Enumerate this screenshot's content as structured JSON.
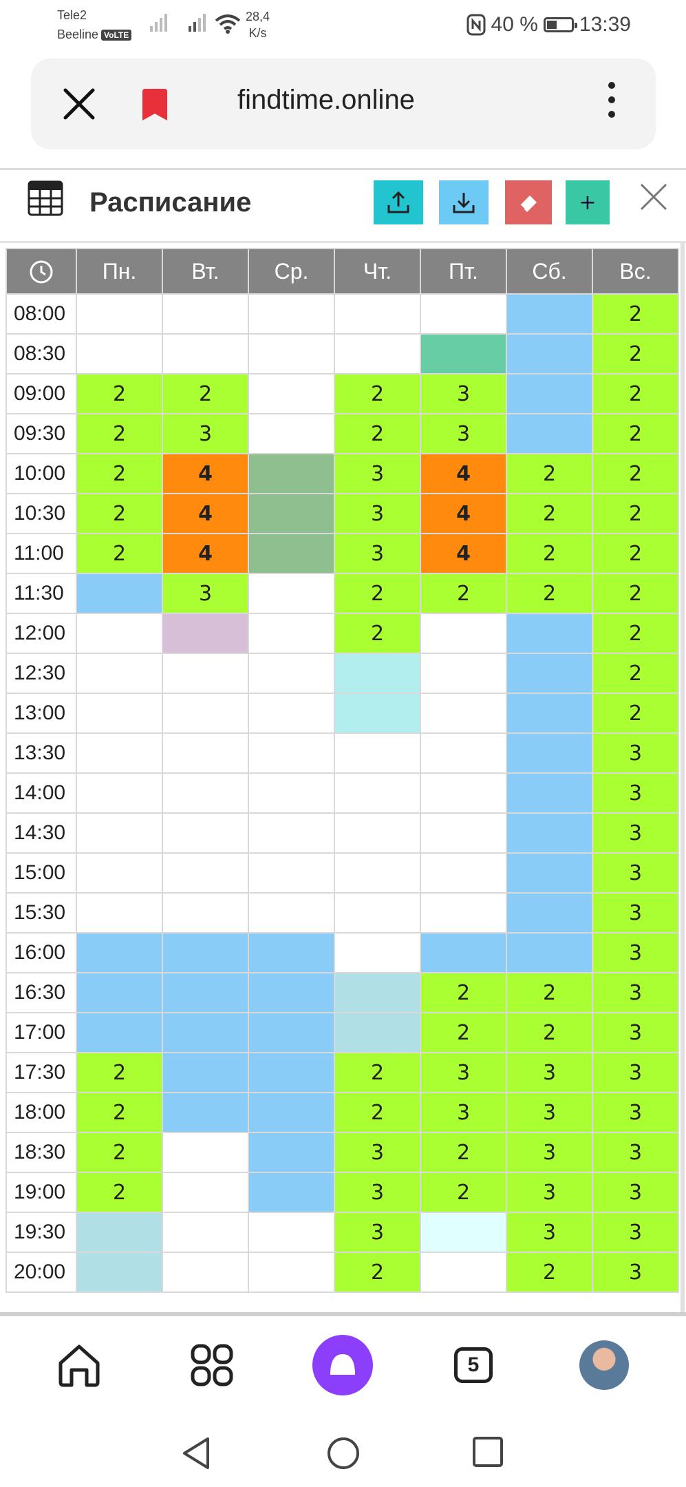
{
  "status_bar": {
    "operator1": "Tele2",
    "operator2": "Beeline",
    "volte": "VoLTE",
    "net_speed_value": "28,4",
    "net_speed_unit": "K/s",
    "battery": "40 %",
    "time": "13:39"
  },
  "browser": {
    "url": "findtime.online"
  },
  "schedule": {
    "title": "Расписание",
    "add_label": "+",
    "days": [
      "Пн.",
      "Вт.",
      "Ср.",
      "Чт.",
      "Пт.",
      "Сб.",
      "Вс."
    ],
    "rows": [
      {
        "time": "08:00",
        "cells": [
          {
            "v": "",
            "c": "w"
          },
          {
            "v": "",
            "c": "w"
          },
          {
            "v": "",
            "c": "w"
          },
          {
            "v": "",
            "c": "w"
          },
          {
            "v": "",
            "c": "w"
          },
          {
            "v": "",
            "c": "b"
          },
          {
            "v": "2",
            "c": "g"
          }
        ]
      },
      {
        "time": "08:30",
        "cells": [
          {
            "v": "",
            "c": "w"
          },
          {
            "v": "",
            "c": "w"
          },
          {
            "v": "",
            "c": "w"
          },
          {
            "v": "",
            "c": "w"
          },
          {
            "v": "",
            "c": "t"
          },
          {
            "v": "",
            "c": "b"
          },
          {
            "v": "2",
            "c": "g"
          }
        ]
      },
      {
        "time": "09:00",
        "cells": [
          {
            "v": "2",
            "c": "g"
          },
          {
            "v": "2",
            "c": "g"
          },
          {
            "v": "",
            "c": "w"
          },
          {
            "v": "2",
            "c": "g"
          },
          {
            "v": "3",
            "c": "g"
          },
          {
            "v": "",
            "c": "b"
          },
          {
            "v": "2",
            "c": "g"
          }
        ]
      },
      {
        "time": "09:30",
        "cells": [
          {
            "v": "2",
            "c": "g"
          },
          {
            "v": "3",
            "c": "g"
          },
          {
            "v": "",
            "c": "w"
          },
          {
            "v": "2",
            "c": "g"
          },
          {
            "v": "3",
            "c": "g"
          },
          {
            "v": "",
            "c": "b"
          },
          {
            "v": "2",
            "c": "g"
          }
        ]
      },
      {
        "time": "10:00",
        "cells": [
          {
            "v": "2",
            "c": "g"
          },
          {
            "v": "4",
            "c": "o"
          },
          {
            "v": "",
            "c": "s"
          },
          {
            "v": "3",
            "c": "g"
          },
          {
            "v": "4",
            "c": "o"
          },
          {
            "v": "2",
            "c": "g"
          },
          {
            "v": "2",
            "c": "g"
          }
        ]
      },
      {
        "time": "10:30",
        "cells": [
          {
            "v": "2",
            "c": "g"
          },
          {
            "v": "4",
            "c": "o"
          },
          {
            "v": "",
            "c": "s"
          },
          {
            "v": "3",
            "c": "g"
          },
          {
            "v": "4",
            "c": "o"
          },
          {
            "v": "2",
            "c": "g"
          },
          {
            "v": "2",
            "c": "g"
          }
        ]
      },
      {
        "time": "11:00",
        "cells": [
          {
            "v": "2",
            "c": "g"
          },
          {
            "v": "4",
            "c": "o"
          },
          {
            "v": "",
            "c": "s"
          },
          {
            "v": "3",
            "c": "g"
          },
          {
            "v": "4",
            "c": "o"
          },
          {
            "v": "2",
            "c": "g"
          },
          {
            "v": "2",
            "c": "g"
          }
        ]
      },
      {
        "time": "11:30",
        "cells": [
          {
            "v": "",
            "c": "b"
          },
          {
            "v": "3",
            "c": "g"
          },
          {
            "v": "",
            "c": "w"
          },
          {
            "v": "2",
            "c": "g"
          },
          {
            "v": "2",
            "c": "g"
          },
          {
            "v": "2",
            "c": "g"
          },
          {
            "v": "2",
            "c": "g"
          }
        ]
      },
      {
        "time": "12:00",
        "cells": [
          {
            "v": "",
            "c": "w"
          },
          {
            "v": "",
            "c": "p"
          },
          {
            "v": "",
            "c": "w"
          },
          {
            "v": "2",
            "c": "g"
          },
          {
            "v": "",
            "c": "w"
          },
          {
            "v": "",
            "c": "b"
          },
          {
            "v": "2",
            "c": "g"
          }
        ]
      },
      {
        "time": "12:30",
        "cells": [
          {
            "v": "",
            "c": "w"
          },
          {
            "v": "",
            "c": "w"
          },
          {
            "v": "",
            "c": "w"
          },
          {
            "v": "",
            "c": "c"
          },
          {
            "v": "",
            "c": "w"
          },
          {
            "v": "",
            "c": "b"
          },
          {
            "v": "2",
            "c": "g"
          }
        ]
      },
      {
        "time": "13:00",
        "cells": [
          {
            "v": "",
            "c": "w"
          },
          {
            "v": "",
            "c": "w"
          },
          {
            "v": "",
            "c": "w"
          },
          {
            "v": "",
            "c": "c"
          },
          {
            "v": "",
            "c": "w"
          },
          {
            "v": "",
            "c": "b"
          },
          {
            "v": "2",
            "c": "g"
          }
        ]
      },
      {
        "time": "13:30",
        "cells": [
          {
            "v": "",
            "c": "w"
          },
          {
            "v": "",
            "c": "w"
          },
          {
            "v": "",
            "c": "w"
          },
          {
            "v": "",
            "c": "w"
          },
          {
            "v": "",
            "c": "w"
          },
          {
            "v": "",
            "c": "b"
          },
          {
            "v": "3",
            "c": "g"
          }
        ]
      },
      {
        "time": "14:00",
        "cells": [
          {
            "v": "",
            "c": "w"
          },
          {
            "v": "",
            "c": "w"
          },
          {
            "v": "",
            "c": "w"
          },
          {
            "v": "",
            "c": "w"
          },
          {
            "v": "",
            "c": "w"
          },
          {
            "v": "",
            "c": "b"
          },
          {
            "v": "3",
            "c": "g"
          }
        ]
      },
      {
        "time": "14:30",
        "cells": [
          {
            "v": "",
            "c": "w"
          },
          {
            "v": "",
            "c": "w"
          },
          {
            "v": "",
            "c": "w"
          },
          {
            "v": "",
            "c": "w"
          },
          {
            "v": "",
            "c": "w"
          },
          {
            "v": "",
            "c": "b"
          },
          {
            "v": "3",
            "c": "g"
          }
        ]
      },
      {
        "time": "15:00",
        "cells": [
          {
            "v": "",
            "c": "w"
          },
          {
            "v": "",
            "c": "w"
          },
          {
            "v": "",
            "c": "w"
          },
          {
            "v": "",
            "c": "w"
          },
          {
            "v": "",
            "c": "w"
          },
          {
            "v": "",
            "c": "b"
          },
          {
            "v": "3",
            "c": "g"
          }
        ]
      },
      {
        "time": "15:30",
        "cells": [
          {
            "v": "",
            "c": "w"
          },
          {
            "v": "",
            "c": "w"
          },
          {
            "v": "",
            "c": "w"
          },
          {
            "v": "",
            "c": "w"
          },
          {
            "v": "",
            "c": "w"
          },
          {
            "v": "",
            "c": "b"
          },
          {
            "v": "3",
            "c": "g"
          }
        ]
      },
      {
        "time": "16:00",
        "cells": [
          {
            "v": "",
            "c": "b"
          },
          {
            "v": "",
            "c": "b"
          },
          {
            "v": "",
            "c": "b"
          },
          {
            "v": "",
            "c": "w"
          },
          {
            "v": "",
            "c": "b"
          },
          {
            "v": "",
            "c": "b"
          },
          {
            "v": "3",
            "c": "g"
          }
        ]
      },
      {
        "time": "16:30",
        "cells": [
          {
            "v": "",
            "c": "b"
          },
          {
            "v": "",
            "c": "b"
          },
          {
            "v": "",
            "c": "b"
          },
          {
            "v": "",
            "c": "l"
          },
          {
            "v": "2",
            "c": "g"
          },
          {
            "v": "2",
            "c": "g"
          },
          {
            "v": "3",
            "c": "g"
          }
        ]
      },
      {
        "time": "17:00",
        "cells": [
          {
            "v": "",
            "c": "b"
          },
          {
            "v": "",
            "c": "b"
          },
          {
            "v": "",
            "c": "b"
          },
          {
            "v": "",
            "c": "l"
          },
          {
            "v": "2",
            "c": "g"
          },
          {
            "v": "2",
            "c": "g"
          },
          {
            "v": "3",
            "c": "g"
          }
        ]
      },
      {
        "time": "17:30",
        "cells": [
          {
            "v": "2",
            "c": "g"
          },
          {
            "v": "",
            "c": "b"
          },
          {
            "v": "",
            "c": "b"
          },
          {
            "v": "2",
            "c": "g"
          },
          {
            "v": "3",
            "c": "g"
          },
          {
            "v": "3",
            "c": "g"
          },
          {
            "v": "3",
            "c": "g"
          }
        ]
      },
      {
        "time": "18:00",
        "cells": [
          {
            "v": "2",
            "c": "g"
          },
          {
            "v": "",
            "c": "b"
          },
          {
            "v": "",
            "c": "b"
          },
          {
            "v": "2",
            "c": "g"
          },
          {
            "v": "3",
            "c": "g"
          },
          {
            "v": "3",
            "c": "g"
          },
          {
            "v": "3",
            "c": "g"
          }
        ]
      },
      {
        "time": "18:30",
        "cells": [
          {
            "v": "2",
            "c": "g"
          },
          {
            "v": "",
            "c": "w"
          },
          {
            "v": "",
            "c": "b"
          },
          {
            "v": "3",
            "c": "g"
          },
          {
            "v": "2",
            "c": "g"
          },
          {
            "v": "3",
            "c": "g"
          },
          {
            "v": "3",
            "c": "g"
          }
        ]
      },
      {
        "time": "19:00",
        "cells": [
          {
            "v": "2",
            "c": "g"
          },
          {
            "v": "",
            "c": "w"
          },
          {
            "v": "",
            "c": "b"
          },
          {
            "v": "3",
            "c": "g"
          },
          {
            "v": "2",
            "c": "g"
          },
          {
            "v": "3",
            "c": "g"
          },
          {
            "v": "3",
            "c": "g"
          }
        ]
      },
      {
        "time": "19:30",
        "cells": [
          {
            "v": "",
            "c": "l"
          },
          {
            "v": "",
            "c": "w"
          },
          {
            "v": "",
            "c": "w"
          },
          {
            "v": "3",
            "c": "g"
          },
          {
            "v": "",
            "c": "x"
          },
          {
            "v": "3",
            "c": "g"
          },
          {
            "v": "3",
            "c": "g"
          }
        ]
      },
      {
        "time": "20:00",
        "cells": [
          {
            "v": "",
            "c": "l"
          },
          {
            "v": "",
            "c": "w"
          },
          {
            "v": "",
            "c": "w"
          },
          {
            "v": "2",
            "c": "g"
          },
          {
            "v": "",
            "c": "w"
          },
          {
            "v": "2",
            "c": "g"
          },
          {
            "v": "3",
            "c": "g"
          }
        ]
      }
    ]
  },
  "cell_colors": {
    "w": "#ffffff",
    "g": "#aaff33",
    "o": "#ff8a0d",
    "b": "#88ccf7",
    "s": "#8fbf8f",
    "t": "#66cda5",
    "p": "#d8bfd8",
    "c": "#b2eeee",
    "l": "#b0dfe5",
    "x": "#e0ffff"
  },
  "bottom_nav": {
    "tabs_count": "5",
    "items": [
      "home-icon",
      "apps-icon",
      "alice-icon",
      "tabs-icon",
      "avatar"
    ]
  },
  "system_nav": [
    "back-icon",
    "home-circle-icon",
    "recents-icon"
  ]
}
